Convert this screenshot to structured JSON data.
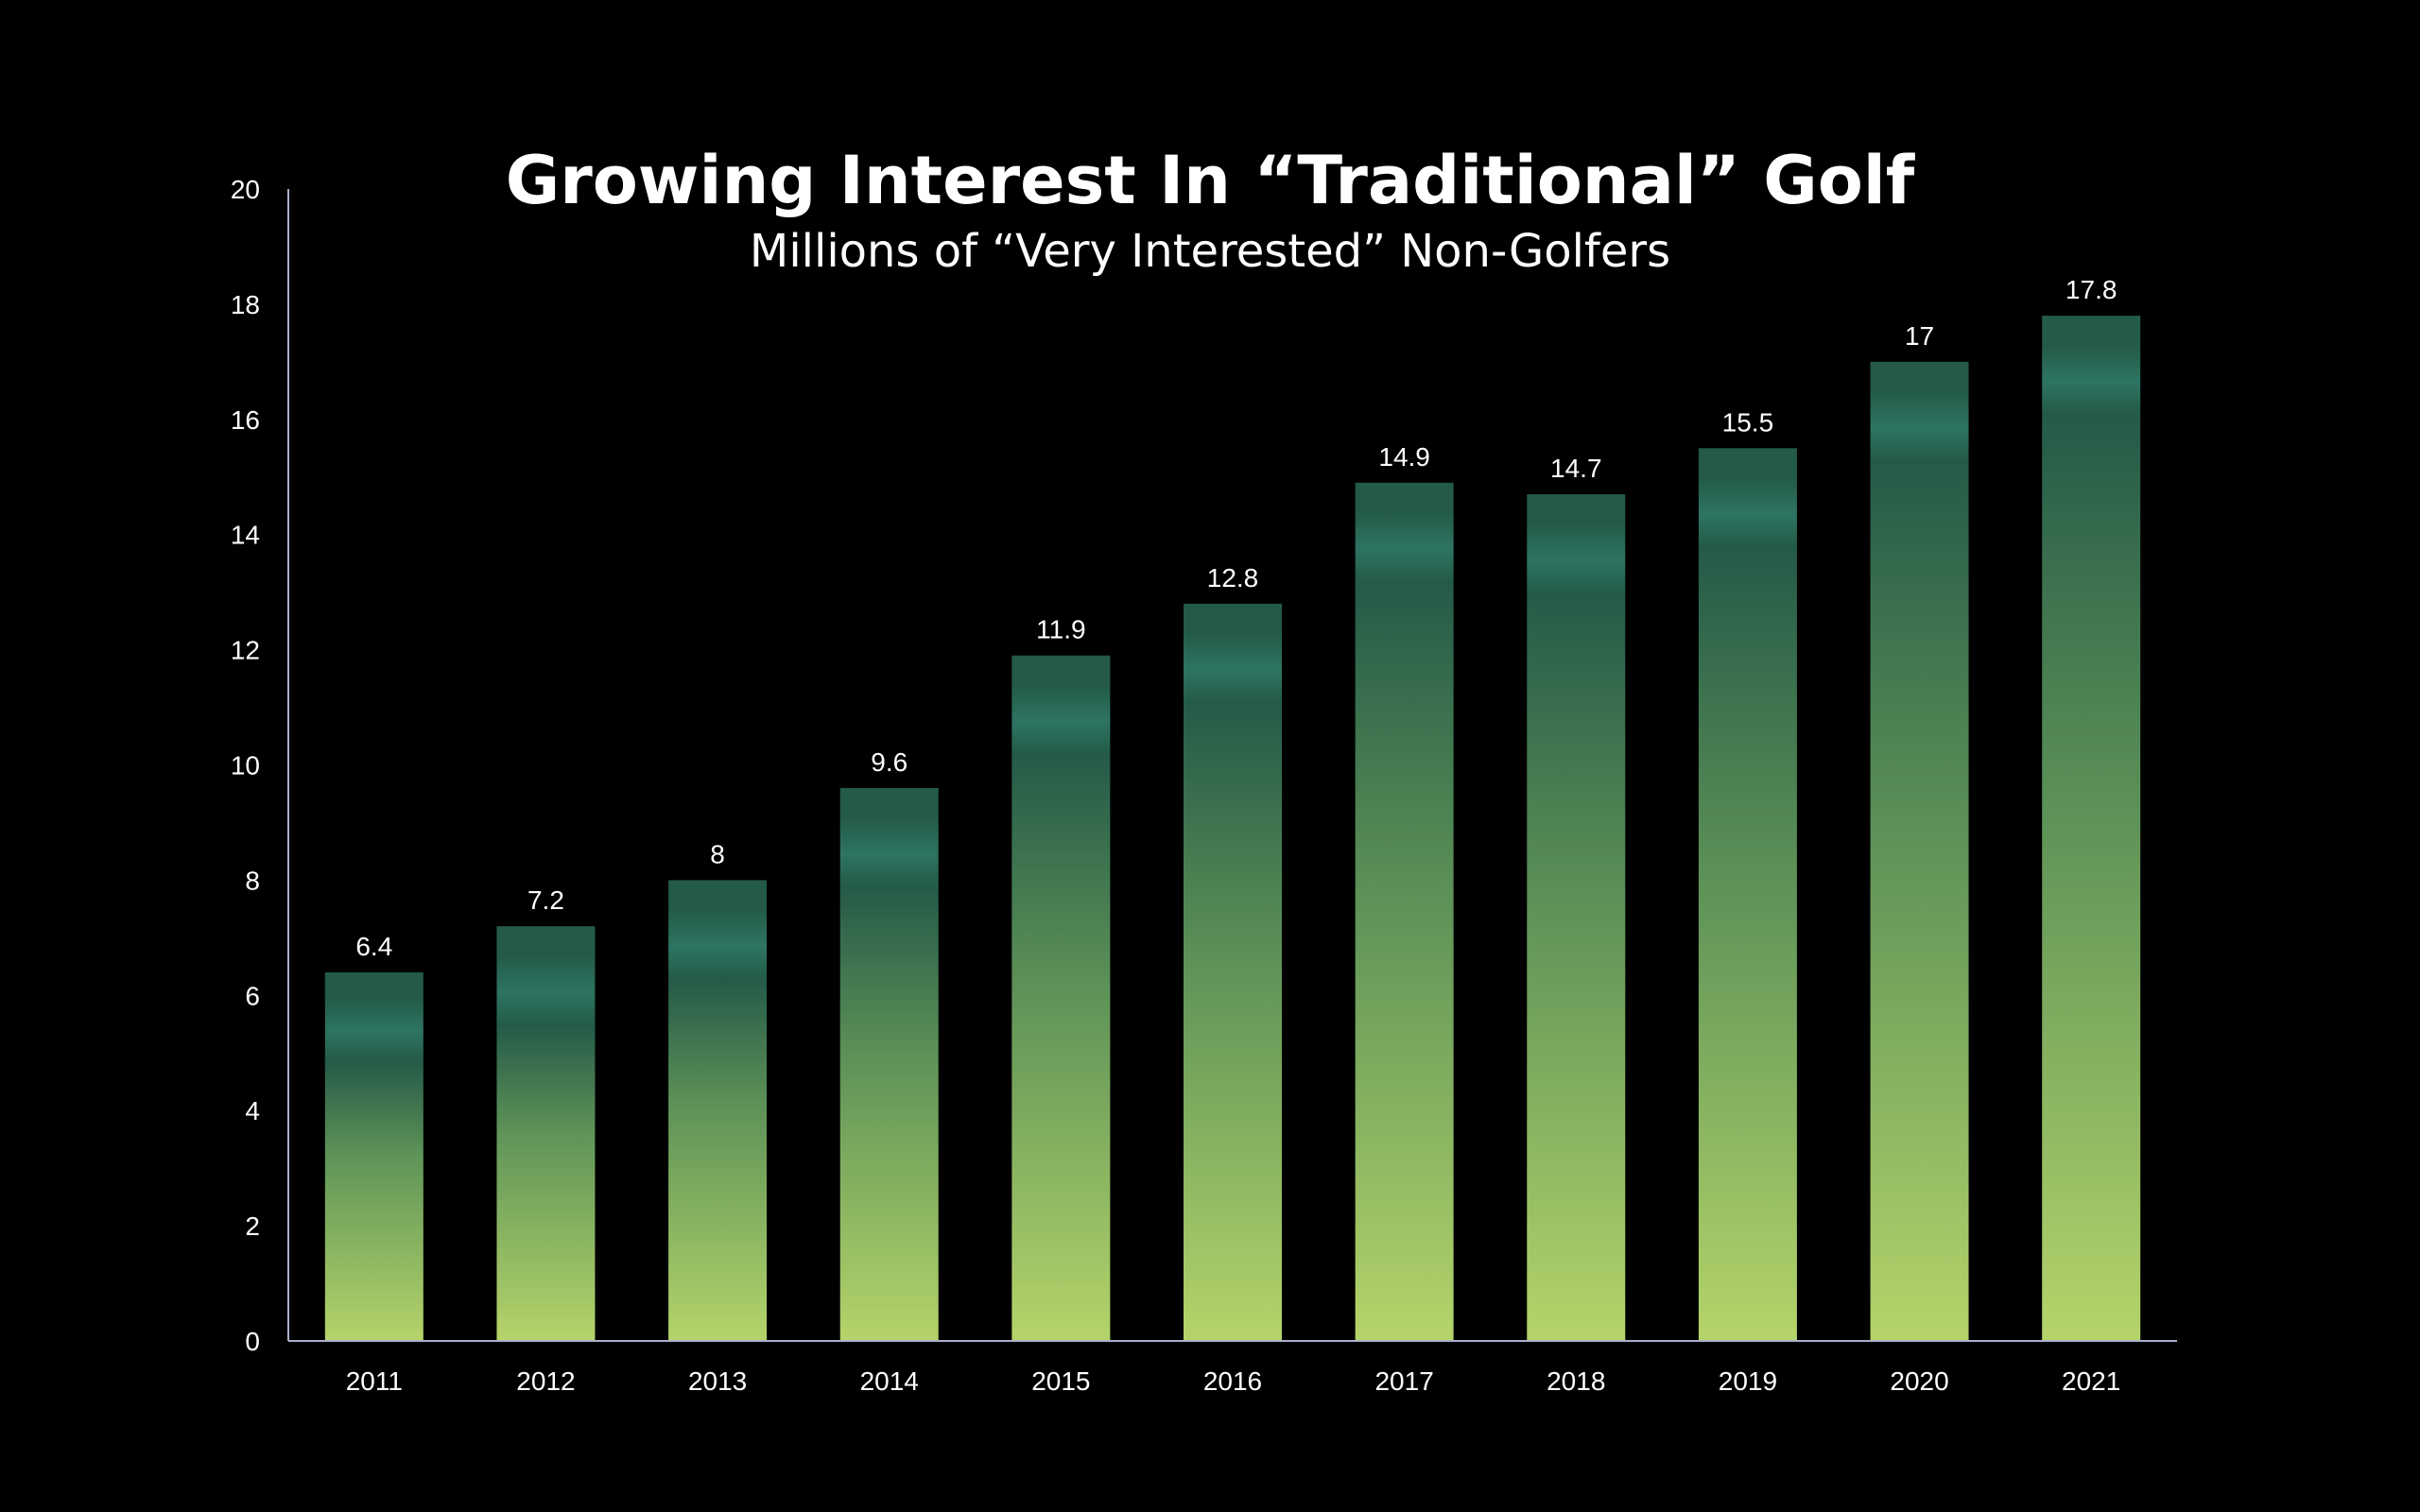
{
  "chart_data": {
    "type": "bar",
    "title": "Growing Interest In “Traditional” Golf",
    "subtitle": "Millions of “Very Interested” Non-Golfers",
    "xlabel": "",
    "ylabel": "",
    "categories": [
      "2011",
      "2012",
      "2013",
      "2014",
      "2015",
      "2016",
      "2017",
      "2018",
      "2019",
      "2020",
      "2021"
    ],
    "values": [
      6.4,
      7.2,
      8,
      9.6,
      11.9,
      12.8,
      14.9,
      14.7,
      15.5,
      17,
      17.8
    ],
    "data_labels": [
      "6.4",
      "7.2",
      "8",
      "9.6",
      "11.9",
      "12.8",
      "14.9",
      "14.7",
      "15.5",
      "17",
      "17.8"
    ],
    "ylim": [
      0,
      20
    ],
    "y_ticks": [
      "0",
      "2",
      "4",
      "6",
      "8",
      "10",
      "12",
      "14",
      "16",
      "18",
      "20"
    ],
    "grid": false,
    "legend": "none",
    "colors": {
      "background": "#000000",
      "bar_bottom": "#b5d46a",
      "bar_mid": "#5f9458",
      "bar_top": "#245a48",
      "bar_band": "#2e7462",
      "axis": "#aab0cc",
      "text": "#ffffff"
    }
  }
}
